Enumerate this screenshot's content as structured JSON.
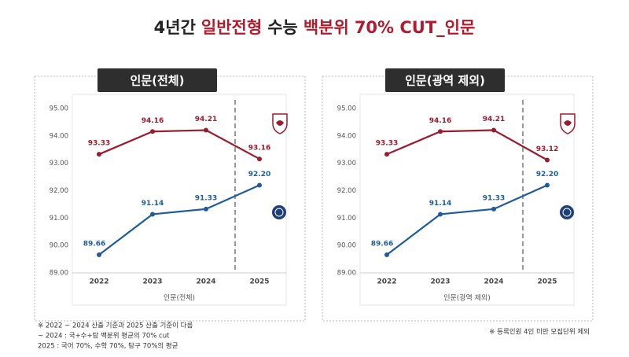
{
  "title_parts": [
    {
      "text": "4년간",
      "color": "#222222"
    },
    {
      "text": "일반전형",
      "color": "#b01c2e"
    },
    {
      "text": "수능",
      "color": "#222222"
    },
    {
      "text": "백분위",
      "color": "#b01c2e"
    },
    {
      "text": "70% CUT_인문",
      "color": "#b01c2e"
    }
  ],
  "chart_data": [
    {
      "type": "line",
      "title": "인문(전체)",
      "xlabel": "인문(전체)",
      "categories": [
        "2022",
        "2023",
        "2024",
        "2025"
      ],
      "series": [
        {
          "color": "#9b1b30",
          "values": [
            93.33,
            94.16,
            94.21,
            93.16
          ],
          "value_labels": [
            "93.33",
            "94.16",
            "94.21",
            "93.16"
          ]
        },
        {
          "color": "#1f5c99",
          "values": [
            89.66,
            91.14,
            91.33,
            92.2
          ],
          "value_labels": [
            "89.66",
            "91.14",
            "91.33",
            "92.20"
          ]
        }
      ],
      "ylim": [
        89,
        95
      ],
      "yticks": [
        {
          "value": 89,
          "label": "89.00"
        },
        {
          "value": 90,
          "label": "90.00"
        },
        {
          "value": 91,
          "label": "91.00"
        },
        {
          "value": 92,
          "label": "92.00"
        },
        {
          "value": 93,
          "label": "93.00"
        },
        {
          "value": 94,
          "label": "94.00"
        },
        {
          "value": 95,
          "label": "95.00"
        }
      ],
      "grid": false
    },
    {
      "type": "line",
      "title": "인문(광역 제외)",
      "xlabel": "인문(광역 제외)",
      "categories": [
        "2022",
        "2023",
        "2024",
        "2025"
      ],
      "series": [
        {
          "color": "#9b1b30",
          "values": [
            93.33,
            94.16,
            94.21,
            93.12
          ],
          "value_labels": [
            "93.33",
            "94.16",
            "94.21",
            "93.12"
          ]
        },
        {
          "color": "#1f5c99",
          "values": [
            89.66,
            91.14,
            91.33,
            92.2
          ],
          "value_labels": [
            "89.66",
            "91.14",
            "91.33",
            "92.20"
          ]
        }
      ],
      "ylim": [
        89,
        95
      ],
      "yticks": [
        {
          "value": 89,
          "label": "89.00"
        },
        {
          "value": 90,
          "label": "90.00"
        },
        {
          "value": 91,
          "label": "91.00"
        },
        {
          "value": 92,
          "label": "92.00"
        },
        {
          "value": 93,
          "label": "93.00"
        },
        {
          "value": 94,
          "label": "94.00"
        },
        {
          "value": 95,
          "label": "95.00"
        }
      ],
      "grid": false
    }
  ],
  "notes_left": [
    "※ 2022 ~ 2024 산출 기준과 2025 산출 기준이 다름",
    "~ 2024 : 국+수+탐 백분위 평균의 70% cut",
    "2025 : 국어 70%, 수학 70%, 탐구 70%의 평균"
  ],
  "note_right": "※ 등록인원 4인 미만 모집단위 제외"
}
